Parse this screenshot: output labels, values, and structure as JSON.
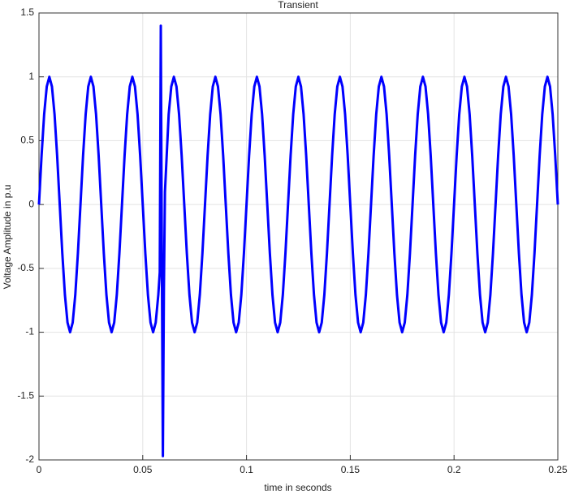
{
  "chart_data": {
    "type": "line",
    "title": "Transient",
    "xlabel": "time in seconds",
    "ylabel": "Voltage Amplitude in p.u",
    "xlim": [
      0,
      0.25
    ],
    "xticks": [
      0,
      0.05,
      0.1,
      0.15,
      0.2,
      0.25
    ],
    "ylim": [
      -2,
      1.5
    ],
    "yticks": [
      -2,
      -1.5,
      -1,
      -0.5,
      0,
      0.5,
      1,
      1.5
    ],
    "grid": true,
    "series": [
      {
        "color": "#0000ff",
        "x": [
          0,
          0.00125,
          0.0025,
          0.00375,
          0.005,
          0.00625,
          0.0075,
          0.00875,
          0.01,
          0.01125,
          0.0125,
          0.01375,
          0.015,
          0.01625,
          0.0175,
          0.01875,
          0.02,
          0.02125,
          0.0225,
          0.02375,
          0.025,
          0.02625,
          0.0275,
          0.02875,
          0.03,
          0.03125,
          0.0325,
          0.03375,
          0.035,
          0.03625,
          0.0375,
          0.03875,
          0.04,
          0.04125,
          0.0425,
          0.04375,
          0.045,
          0.04625,
          0.0475,
          0.04875,
          0.05,
          0.05125,
          0.0525,
          0.05375,
          0.055,
          0.05625,
          0.0575,
          0.0582,
          0.0587,
          0.0592,
          0.0597,
          0.0602,
          0.0607,
          0.0625,
          0.06375,
          0.065,
          0.06625,
          0.0675,
          0.06875,
          0.07,
          0.07125,
          0.0725,
          0.07375,
          0.075,
          0.07625,
          0.0775,
          0.07875,
          0.08,
          0.08125,
          0.0825,
          0.08375,
          0.085,
          0.08625,
          0.0875,
          0.08875,
          0.09,
          0.09125,
          0.0925,
          0.09375,
          0.095,
          0.09625,
          0.0975,
          0.09875,
          0.1,
          0.10125,
          0.1025,
          0.10375,
          0.105,
          0.10625,
          0.1075,
          0.10875,
          0.11,
          0.11125,
          0.1125,
          0.11375,
          0.115,
          0.11625,
          0.1175,
          0.11875,
          0.12,
          0.12125,
          0.1225,
          0.12375,
          0.125,
          0.12625,
          0.1275,
          0.12875,
          0.13,
          0.13125,
          0.1325,
          0.13375,
          0.135,
          0.13625,
          0.1375,
          0.13875,
          0.14,
          0.14125,
          0.1425,
          0.14375,
          0.145,
          0.14625,
          0.1475,
          0.14875,
          0.15,
          0.15125,
          0.1525,
          0.15375,
          0.155,
          0.15625,
          0.1575,
          0.15875,
          0.16,
          0.16125,
          0.1625,
          0.16375,
          0.165,
          0.16625,
          0.1675,
          0.16875,
          0.17,
          0.17125,
          0.1725,
          0.17375,
          0.175,
          0.17625,
          0.1775,
          0.17875,
          0.18,
          0.18125,
          0.1825,
          0.18375,
          0.185,
          0.18625,
          0.1875,
          0.18875,
          0.19,
          0.19125,
          0.1925,
          0.19375,
          0.195,
          0.19625,
          0.1975,
          0.19875,
          0.2,
          0.20125,
          0.2025,
          0.20375,
          0.205,
          0.20625,
          0.2075,
          0.20875,
          0.21,
          0.21125,
          0.2125,
          0.21375,
          0.215,
          0.21625,
          0.2175,
          0.21875,
          0.22,
          0.22125,
          0.2225,
          0.22375,
          0.225,
          0.22625,
          0.2275,
          0.22875,
          0.23,
          0.23125,
          0.2325,
          0.23375,
          0.235,
          0.23625,
          0.2375,
          0.23875,
          0.24,
          0.24125,
          0.2425,
          0.24375,
          0.245,
          0.24625,
          0.2475,
          0.24875,
          0.25
        ],
        "values": [
          0,
          0.383,
          0.707,
          0.924,
          1,
          0.924,
          0.707,
          0.383,
          0,
          -0.383,
          -0.707,
          -0.924,
          -1,
          -0.924,
          -0.707,
          -0.383,
          0,
          0.383,
          0.707,
          0.924,
          1,
          0.924,
          0.707,
          0.383,
          0,
          -0.383,
          -0.707,
          -0.924,
          -1,
          -0.924,
          -0.707,
          -0.383,
          0,
          0.383,
          0.707,
          0.924,
          1,
          0.924,
          0.707,
          0.383,
          0,
          -0.383,
          -0.707,
          -0.924,
          -1,
          -0.924,
          -0.707,
          -0.53,
          1.4,
          -0.4,
          -1.97,
          -0.65,
          0.1,
          0.707,
          0.924,
          1,
          0.924,
          0.707,
          0.383,
          0,
          -0.383,
          -0.707,
          -0.924,
          -1,
          -0.924,
          -0.707,
          -0.383,
          0,
          0.383,
          0.707,
          0.924,
          1,
          0.924,
          0.707,
          0.383,
          0,
          -0.383,
          -0.707,
          -0.924,
          -1,
          -0.924,
          -0.707,
          -0.383,
          0,
          0.383,
          0.707,
          0.924,
          1,
          0.924,
          0.707,
          0.383,
          0,
          -0.383,
          -0.707,
          -0.924,
          -1,
          -0.924,
          -0.707,
          -0.383,
          0,
          0.383,
          0.707,
          0.924,
          1,
          0.924,
          0.707,
          0.383,
          0,
          -0.383,
          -0.707,
          -0.924,
          -1,
          -0.924,
          -0.707,
          -0.383,
          0,
          0.383,
          0.707,
          0.924,
          1,
          0.924,
          0.707,
          0.383,
          0,
          -0.383,
          -0.707,
          -0.924,
          -1,
          -0.924,
          -0.707,
          -0.383,
          0,
          0.383,
          0.707,
          0.924,
          1,
          0.924,
          0.707,
          0.383,
          0,
          -0.383,
          -0.707,
          -0.924,
          -1,
          -0.924,
          -0.707,
          -0.383,
          0,
          0.383,
          0.707,
          0.924,
          1,
          0.924,
          0.707,
          0.383,
          0,
          -0.383,
          -0.707,
          -0.924,
          -1,
          -0.924,
          -0.707,
          -0.383,
          0,
          0.383,
          0.707,
          0.924,
          1,
          0.924,
          0.707,
          0.383,
          0,
          -0.383,
          -0.707,
          -0.924,
          -1,
          -0.924,
          -0.707,
          -0.383,
          0,
          0.383,
          0.707,
          0.924,
          1,
          0.924,
          0.707,
          0.383,
          0,
          -0.383,
          -0.707,
          -0.924,
          -1,
          -0.924,
          -0.707,
          -0.383,
          0,
          0.383,
          0.707,
          0.924,
          1,
          0.924,
          0.707,
          0.383,
          0
        ]
      }
    ]
  }
}
